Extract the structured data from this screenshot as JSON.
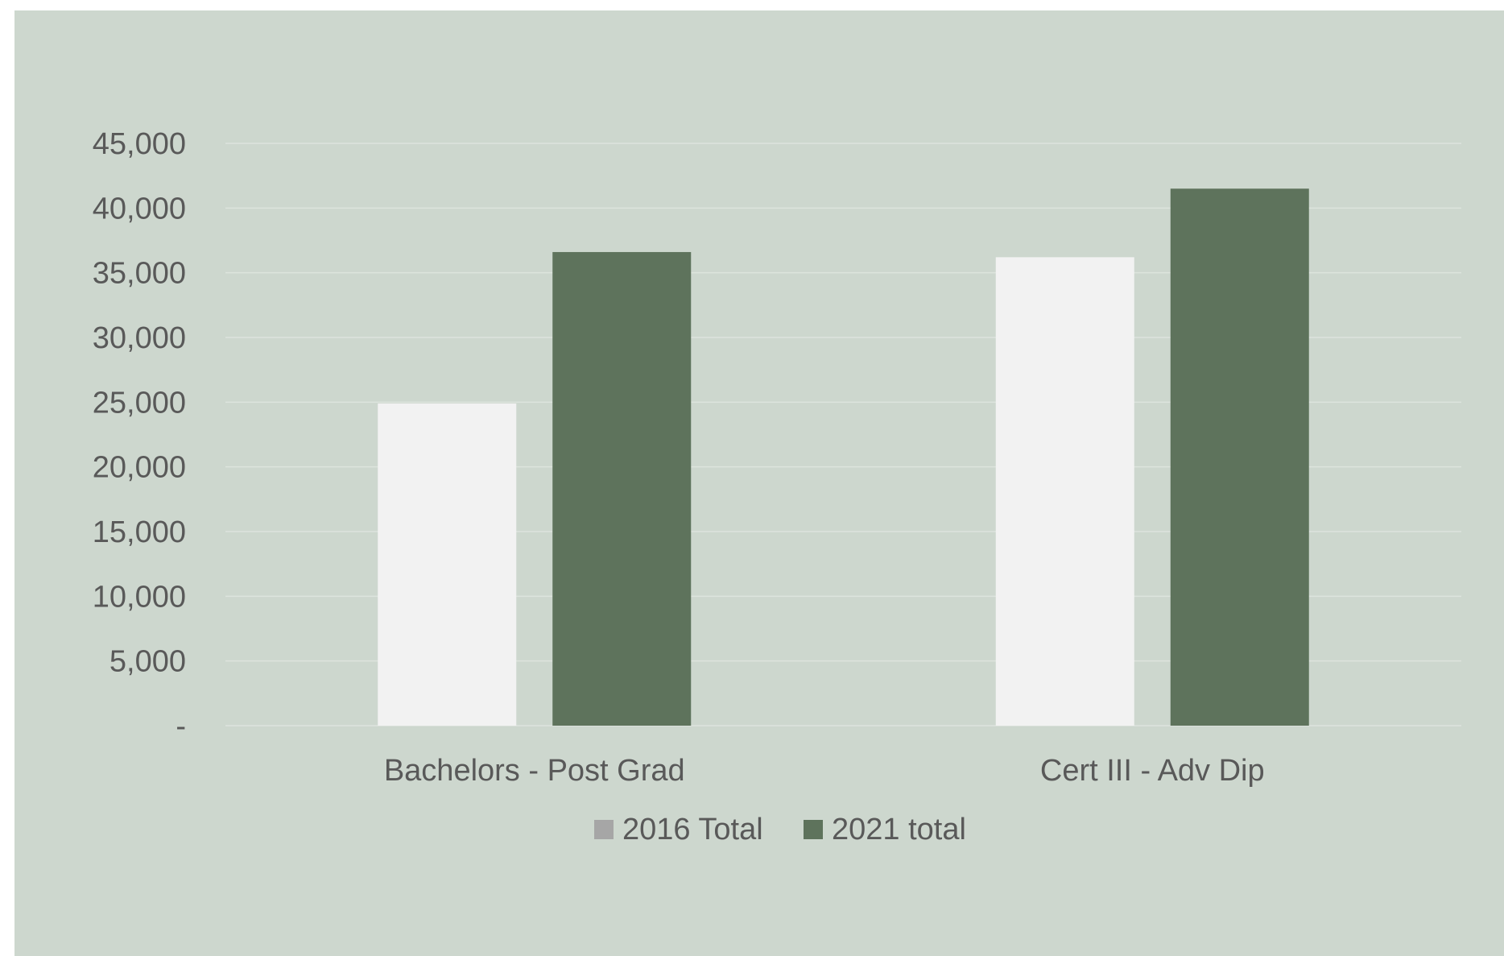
{
  "chart_data": {
    "type": "bar",
    "title": "",
    "xlabel": "",
    "ylabel": "",
    "categories": [
      "Bachelors - Post Grad",
      "Cert III - Adv Dip"
    ],
    "series": [
      {
        "name": "2016 Total",
        "values": [
          24900,
          36200
        ],
        "color": "#f2f2f2",
        "legend_color": "#a6a6a6"
      },
      {
        "name": "2021 total",
        "values": [
          36600,
          41500
        ],
        "color": "#5e735c",
        "legend_color": "#5e735c"
      }
    ],
    "ylim": [
      0,
      45000
    ],
    "yticks": [
      0,
      5000,
      10000,
      15000,
      20000,
      25000,
      30000,
      35000,
      40000,
      45000
    ],
    "ytick_labels": [
      "-",
      "5,000",
      "10,000",
      "15,000",
      "20,000",
      "25,000",
      "30,000",
      "35,000",
      "40,000",
      "45,000"
    ],
    "grid": true,
    "legend_position": "bottom",
    "background": "#cdd7ce"
  }
}
